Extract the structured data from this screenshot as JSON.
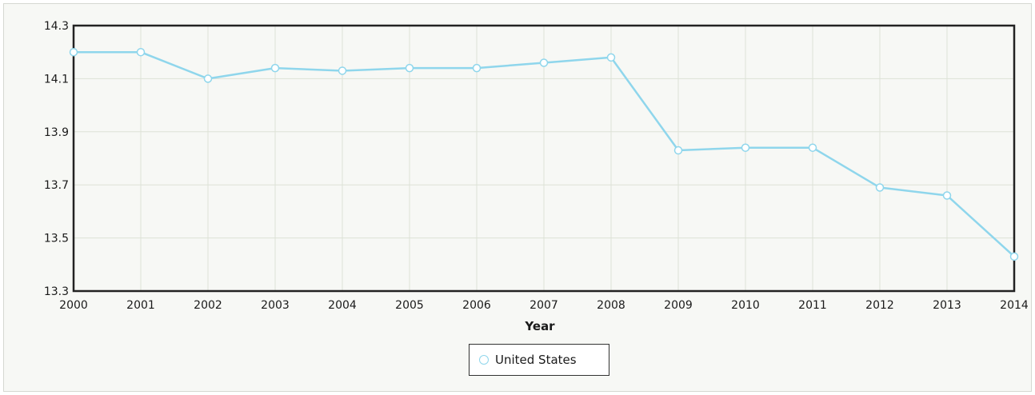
{
  "chart_data": {
    "type": "line",
    "title": "",
    "xlabel": "Year",
    "ylabel": "",
    "x": [
      2000,
      2001,
      2002,
      2003,
      2004,
      2005,
      2006,
      2007,
      2008,
      2009,
      2010,
      2011,
      2012,
      2013,
      2014
    ],
    "ylim": [
      13.3,
      14.3
    ],
    "yticks": [
      "14.3",
      "14.1",
      "13.9",
      "13.7",
      "13.5",
      "13.3"
    ],
    "grid": true,
    "legend_position": "bottom-center",
    "series": [
      {
        "name": "United States",
        "color": "#8fd6ec",
        "values": [
          14.2,
          14.2,
          14.1,
          14.14,
          14.13,
          14.14,
          14.14,
          14.16,
          14.18,
          13.83,
          13.84,
          13.84,
          13.69,
          13.66,
          13.43
        ]
      }
    ]
  }
}
